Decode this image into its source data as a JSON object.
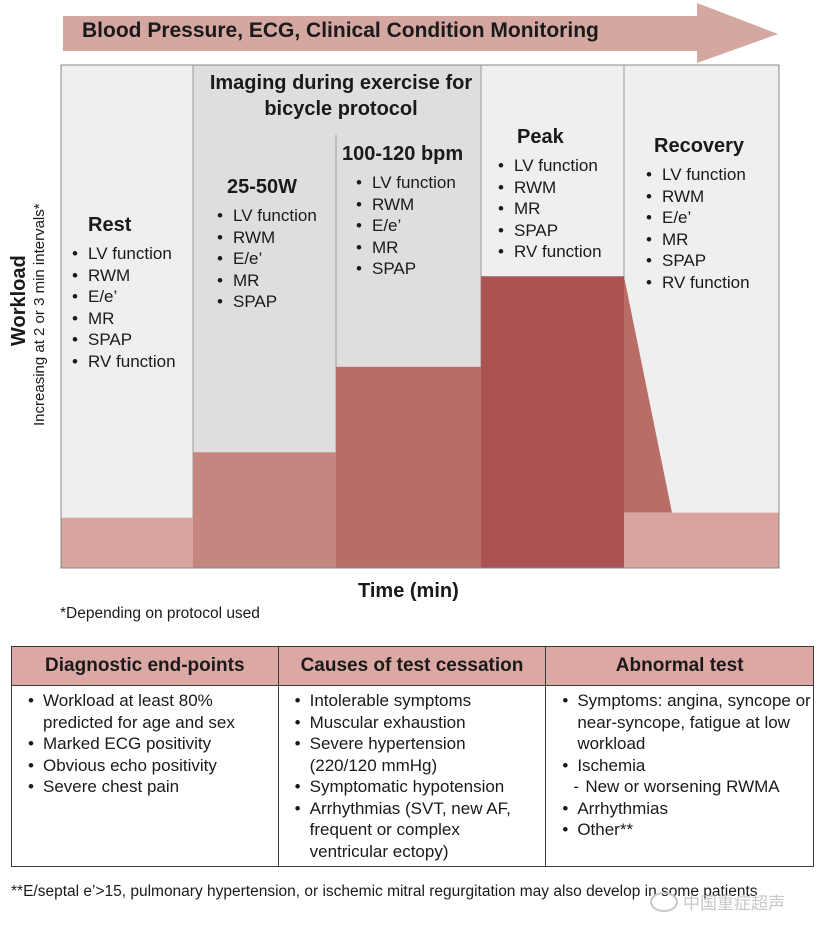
{
  "banner": {
    "title": "Blood Pressure, ECG, Clinical Condition Monitoring"
  },
  "axes": {
    "y_label": "Workload",
    "y_sublabel": "Increasing at 2 or 3 min intervals*",
    "x_label": "Time (min)"
  },
  "imaging_header": {
    "line1": "Imaging during exercise for",
    "line2": "bicycle protocol"
  },
  "stages": [
    {
      "title": "Rest",
      "items": [
        "LV function",
        "RWM",
        "E/e’",
        "MR",
        "SPAP",
        "RV function"
      ]
    },
    {
      "title": "25-50W",
      "items": [
        "LV function",
        "RWM",
        "E/e’",
        "MR",
        "SPAP"
      ]
    },
    {
      "title": "100-120 bpm",
      "items": [
        "LV function",
        "RWM",
        "E/e’",
        "MR",
        "SPAP"
      ]
    },
    {
      "title": "Peak",
      "items": [
        "LV function",
        "RWM",
        "MR",
        "SPAP",
        "RV function"
      ]
    },
    {
      "title": "Recovery",
      "items": [
        "LV function",
        "RWM",
        "E/e’",
        "MR",
        "SPAP",
        "RV function"
      ]
    }
  ],
  "workload_levels": {
    "rest": 0.1,
    "stage_25_50w": 0.23,
    "stage_100_120bpm": 0.4,
    "peak": 0.58,
    "recovery": 0.11
  },
  "colors": {
    "banner_arrow": "#d5a7a1",
    "stage_bg_light": "#efefef",
    "stage_bg_imaging": "#dedede",
    "bar_rest": "#d8a49e",
    "bar_25_50w": "#c4867e",
    "bar_100_120": "#b86e67",
    "bar_peak": "#ab5252",
    "bar_recovery": "#d8a49e",
    "table_header": "#dca8a3"
  },
  "footnote1": "*Depending on protocol used",
  "table": {
    "headers": [
      "Diagnostic end-points",
      "Causes of test cessation",
      "Abnormal test"
    ],
    "col1": [
      {
        "text": "Workload at least 80% predicted for age and sex"
      },
      {
        "text": "Marked ECG positivity"
      },
      {
        "text": "Obvious echo positivity"
      },
      {
        "text": "Severe chest pain"
      }
    ],
    "col2": [
      {
        "text": "Intolerable symptoms"
      },
      {
        "text": "Muscular exhaustion"
      },
      {
        "text": "Severe hypertension (220/120 mmHg)"
      },
      {
        "text": "Symptomatic hypotension"
      },
      {
        "text": "Arrhythmias (SVT, new AF, frequent or complex ventricular ectopy)"
      }
    ],
    "col3": [
      {
        "text": "Symptoms: angina, syncope or near-syncope, fatigue at low workload",
        "sub": false
      },
      {
        "text": "Ischemia",
        "sub": false
      },
      {
        "text": "New or worsening RWMA",
        "sub": true
      },
      {
        "text": "Arrhythmias",
        "sub": false
      },
      {
        "text": "Other**",
        "sub": false
      }
    ]
  },
  "footnote2": "**E/septal e’>15, pulmonary hypertension, or ischemic mitral regurgitation may also develop in some patients",
  "watermark": "中国重症超声"
}
